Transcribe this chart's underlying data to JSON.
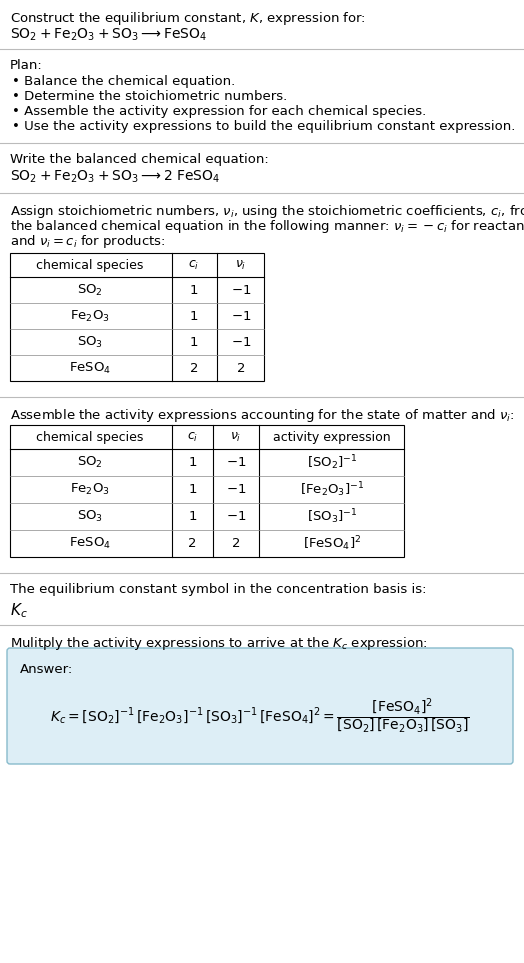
{
  "title_line1": "Construct the equilibrium constant, $K$, expression for:",
  "title_line2": "$\\mathrm{SO_2 + Fe_2O_3 + SO_3 \\longrightarrow FeSO_4}$",
  "plan_header": "Plan:",
  "plan_items": [
    "• Balance the chemical equation.",
    "• Determine the stoichiometric numbers.",
    "• Assemble the activity expression for each chemical species.",
    "• Use the activity expressions to build the equilibrium constant expression."
  ],
  "balanced_header": "Write the balanced chemical equation:",
  "balanced_eq": "$\\mathrm{SO_2 + Fe_2O_3 + SO_3 \\longrightarrow 2\\ FeSO_4}$",
  "stoich_lines": [
    "Assign stoichiometric numbers, $\\nu_i$, using the stoichiometric coefficients, $c_i$, from",
    "the balanced chemical equation in the following manner: $\\nu_i = -c_i$ for reactants",
    "and $\\nu_i = c_i$ for products:"
  ],
  "table1_headers": [
    "chemical species",
    "$c_i$",
    "$\\nu_i$"
  ],
  "table1_rows": [
    [
      "$\\mathrm{SO_2}$",
      "1",
      "$-1$"
    ],
    [
      "$\\mathrm{Fe_2O_3}$",
      "1",
      "$-1$"
    ],
    [
      "$\\mathrm{SO_3}$",
      "1",
      "$-1$"
    ],
    [
      "$\\mathrm{FeSO_4}$",
      "2",
      "$2$"
    ]
  ],
  "activity_header": "Assemble the activity expressions accounting for the state of matter and $\\nu_i$:",
  "table2_headers": [
    "chemical species",
    "$c_i$",
    "$\\nu_i$",
    "activity expression"
  ],
  "table2_rows": [
    [
      "$\\mathrm{SO_2}$",
      "1",
      "$-1$",
      "$[\\mathrm{SO_2}]^{-1}$"
    ],
    [
      "$\\mathrm{Fe_2O_3}$",
      "1",
      "$-1$",
      "$[\\mathrm{Fe_2O_3}]^{-1}$"
    ],
    [
      "$\\mathrm{SO_3}$",
      "1",
      "$-1$",
      "$[\\mathrm{SO_3}]^{-1}$"
    ],
    [
      "$\\mathrm{FeSO_4}$",
      "2",
      "$2$",
      "$[\\mathrm{FeSO_4}]^{2}$"
    ]
  ],
  "kc_header": "The equilibrium constant symbol in the concentration basis is:",
  "kc_symbol": "$K_c$",
  "multiply_header": "Mulitply the activity expressions to arrive at the $K_c$ expression:",
  "answer_label": "Answer:",
  "answer_line1": "$K_c = [\\mathrm{SO_2}]^{-1}\\,[\\mathrm{Fe_2O_3}]^{-1}\\,[\\mathrm{SO_3}]^{-1}\\,[\\mathrm{FeSO_4}]^{2} = \\dfrac{[\\mathrm{FeSO_4}]^{2}}{[\\mathrm{SO_2}]\\,[\\mathrm{Fe_2O_3}]\\,[\\mathrm{SO_3}]}$",
  "bg_color": "#ffffff",
  "text_color": "#000000",
  "table_border_color": "#000000",
  "answer_box_facecolor": "#ddeef6",
  "answer_box_edgecolor": "#88bbcc",
  "separator_color": "#bbbbbb",
  "font_size": 9.5
}
